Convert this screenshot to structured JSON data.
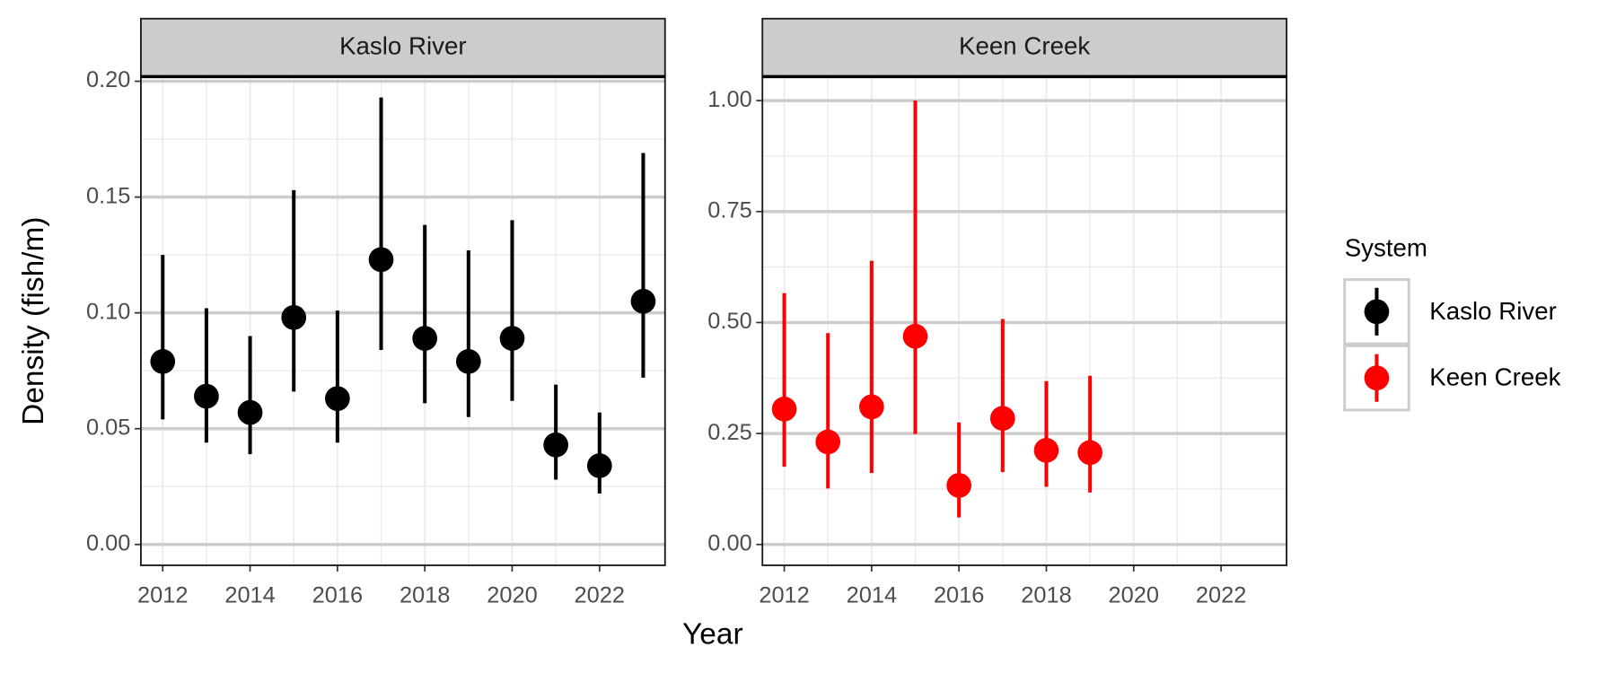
{
  "chart_data": {
    "type": "errorbar",
    "xlabel": "Year",
    "ylabel": "Density (fish/m)",
    "legend_title": "System",
    "xlim": [
      2011.5,
      2023.5
    ],
    "xticks": [
      2012,
      2014,
      2016,
      2018,
      2020,
      2022
    ],
    "grid": true,
    "legend": "right",
    "series": [
      {
        "name": "Kaslo River",
        "color": "#000000",
        "x": [
          2012,
          2013,
          2014,
          2015,
          2016,
          2017,
          2018,
          2019,
          2020,
          2021,
          2022,
          2023
        ],
        "values": [
          0.079,
          0.064,
          0.057,
          0.098,
          0.063,
          0.123,
          0.089,
          0.079,
          0.089,
          0.043,
          0.034,
          0.105
        ],
        "lower": [
          0.054,
          0.044,
          0.039,
          0.066,
          0.044,
          0.084,
          0.061,
          0.055,
          0.062,
          0.028,
          0.022,
          0.072
        ],
        "upper": [
          0.125,
          0.102,
          0.09,
          0.153,
          0.101,
          0.193,
          0.138,
          0.127,
          0.14,
          0.069,
          0.057,
          0.169
        ],
        "ylim": [
          -0.009,
          0.202
        ],
        "yticks": [
          {
            "value": 0,
            "label": "0.00"
          },
          {
            "value": 0.05,
            "label": "0.05"
          },
          {
            "value": 0.1,
            "label": "0.10"
          },
          {
            "value": 0.15,
            "label": "0.15"
          },
          {
            "value": 0.2,
            "label": "0.20"
          }
        ]
      },
      {
        "name": "Keen Creek",
        "color": "#ff0000",
        "x": [
          2012,
          2013,
          2014,
          2015,
          2016,
          2017,
          2018,
          2019
        ],
        "values": [
          0.305,
          0.231,
          0.31,
          0.469,
          0.133,
          0.284,
          0.212,
          0.207
        ],
        "lower": [
          0.175,
          0.126,
          0.161,
          0.249,
          0.061,
          0.163,
          0.13,
          0.117
        ],
        "upper": [
          0.566,
          0.476,
          0.639,
          1.0,
          0.275,
          0.508,
          0.368,
          0.38
        ],
        "ylim": [
          -0.047,
          1.054
        ],
        "yticks": [
          {
            "value": 0,
            "label": "0.00"
          },
          {
            "value": 0.25,
            "label": "0.25"
          },
          {
            "value": 0.5,
            "label": "0.50"
          },
          {
            "value": 0.75,
            "label": "0.75"
          },
          {
            "value": 1,
            "label": "1.00"
          }
        ]
      }
    ]
  }
}
